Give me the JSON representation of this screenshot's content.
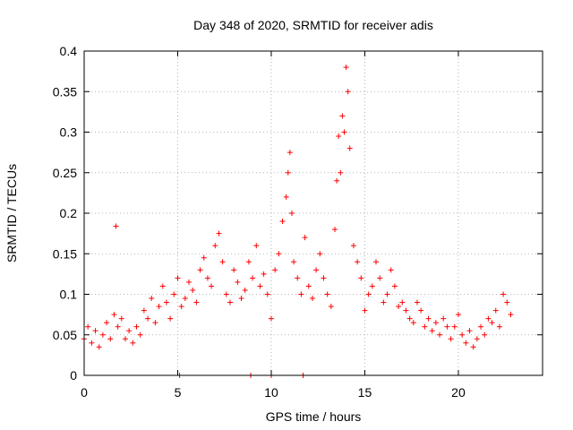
{
  "chart_data": {
    "type": "scatter",
    "title": "Day 348 of 2020, SRMTID for receiver adis",
    "xlabel": "GPS time / hours",
    "ylabel": "SRMTID / TECUs",
    "xlim": [
      0,
      24.5
    ],
    "ylim": [
      0,
      0.4
    ],
    "x_ticks": [
      0,
      5,
      10,
      15,
      20
    ],
    "x_tick_labels": [
      "0",
      "5",
      "10",
      "15",
      "20"
    ],
    "y_ticks": [
      0,
      0.05,
      0.1,
      0.15,
      0.2,
      0.25,
      0.3,
      0.35,
      0.4
    ],
    "y_tick_labels": [
      "0",
      "0.05",
      "0.1",
      "0.15",
      "0.2",
      "0.25",
      "0.3",
      "0.35",
      "0.4"
    ],
    "grid": true,
    "marker": "plus",
    "color": "#ff0000",
    "series": [
      {
        "name": "SRMTID",
        "x": [
          0.0,
          0.2,
          0.4,
          0.6,
          0.8,
          1.0,
          1.2,
          1.4,
          1.6,
          1.7,
          1.8,
          2.0,
          2.2,
          2.4,
          2.6,
          2.8,
          3.0,
          3.2,
          3.4,
          3.6,
          3.8,
          4.0,
          4.2,
          4.4,
          4.6,
          4.8,
          5.0,
          5.2,
          5.4,
          5.6,
          5.8,
          6.0,
          6.2,
          6.4,
          6.6,
          6.8,
          7.0,
          7.2,
          7.4,
          7.6,
          7.8,
          8.0,
          8.2,
          8.4,
          8.6,
          8.8,
          9.0,
          9.2,
          9.4,
          9.6,
          9.8,
          10.0,
          10.2,
          10.4,
          10.6,
          10.8,
          10.9,
          11.0,
          11.1,
          11.2,
          11.4,
          11.6,
          11.8,
          12.0,
          12.2,
          12.4,
          12.6,
          12.8,
          13.0,
          13.2,
          13.4,
          13.5,
          13.6,
          13.7,
          13.8,
          13.9,
          14.0,
          14.1,
          14.2,
          14.4,
          14.6,
          14.8,
          15.0,
          15.2,
          15.4,
          15.6,
          15.8,
          16.0,
          16.2,
          16.4,
          16.6,
          16.8,
          17.0,
          17.2,
          17.4,
          17.6,
          17.8,
          18.0,
          18.2,
          18.4,
          18.6,
          18.8,
          19.0,
          19.2,
          19.4,
          19.6,
          19.8,
          20.0,
          20.2,
          20.4,
          20.6,
          20.8,
          21.0,
          21.2,
          21.4,
          21.6,
          21.8,
          22.0,
          22.2,
          22.4,
          22.6,
          22.8,
          5.1,
          8.9,
          10.0,
          11.7
        ],
        "y": [
          0.045,
          0.06,
          0.04,
          0.055,
          0.035,
          0.05,
          0.065,
          0.045,
          0.075,
          0.184,
          0.06,
          0.07,
          0.045,
          0.055,
          0.04,
          0.06,
          0.05,
          0.08,
          0.07,
          0.095,
          0.065,
          0.085,
          0.11,
          0.09,
          0.07,
          0.1,
          0.12,
          0.085,
          0.095,
          0.115,
          0.105,
          0.09,
          0.13,
          0.145,
          0.12,
          0.11,
          0.16,
          0.175,
          0.14,
          0.1,
          0.09,
          0.13,
          0.115,
          0.095,
          0.105,
          0.14,
          0.12,
          0.16,
          0.11,
          0.125,
          0.1,
          0.07,
          0.13,
          0.15,
          0.19,
          0.22,
          0.25,
          0.275,
          0.2,
          0.14,
          0.12,
          0.1,
          0.17,
          0.11,
          0.095,
          0.13,
          0.15,
          0.12,
          0.1,
          0.085,
          0.18,
          0.24,
          0.295,
          0.25,
          0.32,
          0.3,
          0.38,
          0.35,
          0.28,
          0.16,
          0.14,
          0.12,
          0.08,
          0.1,
          0.11,
          0.14,
          0.12,
          0.09,
          0.1,
          0.13,
          0.11,
          0.085,
          0.09,
          0.08,
          0.07,
          0.065,
          0.09,
          0.08,
          0.06,
          0.07,
          0.055,
          0.065,
          0.05,
          0.07,
          0.06,
          0.045,
          0.06,
          0.075,
          0.05,
          0.04,
          0.055,
          0.035,
          0.045,
          0.06,
          0.05,
          0.07,
          0.065,
          0.08,
          0.06,
          0.1,
          0.09,
          0.075,
          0.0,
          0.0,
          0.0,
          0.0
        ]
      }
    ]
  }
}
